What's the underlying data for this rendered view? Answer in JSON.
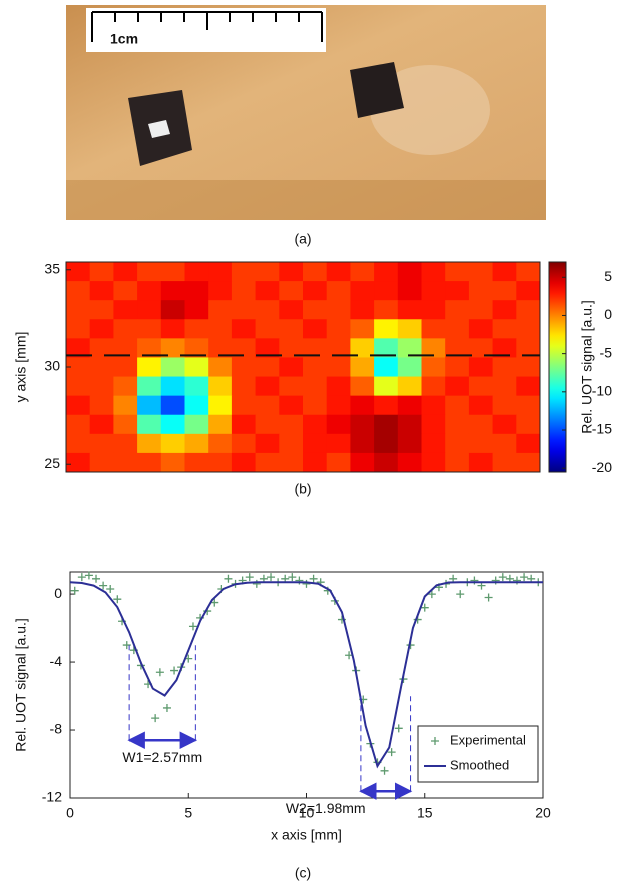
{
  "photo": {
    "scale_label": "1cm",
    "caption": "(a)"
  },
  "chart_data": [
    {
      "type": "heatmap",
      "caption": "(b)",
      "ylabel": "y axis [mm]",
      "colorbar_label": "Rel. UOT signal [a.u.]",
      "xlim": [
        0,
        20
      ],
      "ylim": [
        24.6,
        35.4
      ],
      "yticks": [
        25,
        30,
        35
      ],
      "clim": [
        -20.5,
        7
      ],
      "cticks": [
        5,
        0,
        -5,
        -10,
        -15,
        -20
      ],
      "colormap": "jet",
      "hline": 30.6,
      "values": [
        [
          3,
          2,
          3,
          2,
          2,
          3,
          3,
          2,
          2,
          3,
          2,
          3,
          2,
          3,
          4,
          3,
          2,
          2,
          3,
          2
        ],
        [
          2,
          3,
          2,
          3,
          4,
          4,
          3,
          2,
          3,
          2,
          3,
          2,
          3,
          3,
          4,
          3,
          3,
          2,
          2,
          3
        ],
        [
          2,
          2,
          3,
          3,
          5,
          4,
          2,
          2,
          2,
          3,
          2,
          2,
          3,
          2,
          3,
          3,
          2,
          2,
          3,
          2
        ],
        [
          2,
          3,
          2,
          2,
          3,
          2,
          2,
          3,
          2,
          2,
          3,
          2,
          1,
          -3,
          -2,
          2,
          2,
          3,
          2,
          2
        ],
        [
          3,
          2,
          2,
          1,
          0,
          1,
          2,
          2,
          3,
          2,
          2,
          2,
          -2,
          -8,
          -6,
          0,
          2,
          2,
          3,
          2
        ],
        [
          2,
          2,
          2,
          -3,
          -6,
          -4,
          0,
          2,
          2,
          3,
          2,
          2,
          -1,
          -10,
          -7,
          1,
          2,
          3,
          2,
          2
        ],
        [
          2,
          2,
          1,
          -8,
          -11,
          -9,
          -2,
          2,
          3,
          2,
          2,
          3,
          1,
          -4,
          -2,
          2,
          3,
          2,
          2,
          3
        ],
        [
          3,
          2,
          0,
          -12,
          -15,
          -10,
          -3,
          2,
          2,
          3,
          2,
          3,
          4,
          3,
          4,
          3,
          2,
          3,
          2,
          2
        ],
        [
          2,
          3,
          1,
          -8,
          -10,
          -7,
          -1,
          3,
          2,
          2,
          3,
          4,
          5,
          6,
          5,
          3,
          2,
          2,
          3,
          2
        ],
        [
          2,
          2,
          2,
          -1,
          -2,
          -1,
          1,
          2,
          3,
          2,
          3,
          3,
          5,
          6,
          5,
          3,
          2,
          2,
          2,
          3
        ],
        [
          3,
          2,
          2,
          2,
          1,
          2,
          2,
          3,
          2,
          2,
          3,
          2,
          4,
          5,
          4,
          3,
          2,
          3,
          2,
          2
        ]
      ]
    },
    {
      "type": "line",
      "caption": "(c)",
      "xlabel": "x axis [mm]",
      "ylabel": "Rel. UOT signal [a.u.]",
      "xlim": [
        0,
        20
      ],
      "ylim": [
        -12,
        1.3
      ],
      "xticks": [
        0,
        5,
        10,
        15,
        20
      ],
      "yticks": [
        0,
        -4,
        -8,
        -12
      ],
      "legend": "lower right",
      "series": [
        {
          "name": "Experimental",
          "color": "#5e9a6e",
          "marker": "+",
          "x": [
            0.2,
            0.5,
            0.8,
            1.1,
            1.4,
            1.7,
            2.0,
            2.2,
            2.4,
            2.7,
            3.0,
            3.3,
            3.6,
            3.8,
            4.1,
            4.4,
            4.7,
            5.0,
            5.2,
            5.5,
            5.8,
            6.1,
            6.4,
            6.7,
            7.0,
            7.3,
            7.6,
            7.9,
            8.2,
            8.5,
            8.8,
            9.1,
            9.4,
            9.7,
            10.0,
            10.3,
            10.6,
            10.9,
            11.2,
            11.5,
            11.8,
            12.1,
            12.4,
            12.7,
            13.0,
            13.3,
            13.6,
            13.9,
            14.1,
            14.4,
            14.7,
            15.0,
            15.3,
            15.6,
            15.9,
            16.2,
            16.5,
            16.8,
            17.1,
            17.4,
            17.7,
            18.0,
            18.3,
            18.6,
            18.9,
            19.2,
            19.5,
            19.8
          ],
          "values": [
            0.2,
            1.0,
            1.1,
            0.9,
            0.5,
            0.3,
            -0.3,
            -1.6,
            -3.0,
            -3.3,
            -4.2,
            -5.3,
            -7.3,
            -4.6,
            -6.7,
            -4.5,
            -4.3,
            -3.8,
            -1.9,
            -1.4,
            -1.0,
            -0.5,
            0.3,
            0.9,
            0.6,
            0.8,
            1.0,
            0.6,
            0.9,
            1.0,
            0.7,
            0.9,
            1.0,
            0.8,
            0.6,
            0.9,
            0.7,
            0.2,
            -0.4,
            -1.5,
            -3.6,
            -4.5,
            -6.2,
            -8.8,
            -9.9,
            -10.4,
            -9.3,
            -7.9,
            -5.0,
            -3.0,
            -1.5,
            -0.8,
            0.0,
            0.4,
            0.6,
            0.9,
            0.0,
            0.7,
            0.8,
            0.5,
            -0.2,
            0.8,
            1.0,
            0.9,
            0.8,
            1.0,
            0.9,
            0.7
          ]
        },
        {
          "name": "Smoothed",
          "color": "#2c2f96",
          "marker": "line",
          "x": [
            0,
            0.5,
            1,
            1.5,
            2,
            2.5,
            3,
            3.5,
            4,
            4.5,
            5,
            5.5,
            6,
            6.5,
            7,
            7.5,
            8,
            8.5,
            9,
            9.5,
            10,
            10.5,
            11,
            11.5,
            12,
            12.5,
            13,
            13.5,
            14,
            14.5,
            15,
            15.5,
            16,
            16.5,
            17,
            17.5,
            18,
            18.5,
            19,
            19.5,
            20
          ],
          "values": [
            0.7,
            0.65,
            0.5,
            0.1,
            -0.77,
            -2.25,
            -4.06,
            -5.56,
            -5.97,
            -5.06,
            -3.32,
            -1.58,
            -0.35,
            0.31,
            0.58,
            0.67,
            0.7,
            0.7,
            0.7,
            0.7,
            0.69,
            0.61,
            0.22,
            -1.07,
            -3.9,
            -7.75,
            -10.12,
            -9.02,
            -5.45,
            -2.0,
            -0.14,
            0.52,
            0.68,
            0.7,
            0.7,
            0.7,
            0.7,
            0.7,
            0.7,
            0.7,
            0.7
          ]
        }
      ],
      "annotations": [
        {
          "text": "W1=2.57mm",
          "x": [
            2.5,
            5.3
          ],
          "y": -8.6,
          "color": "#3636c8"
        },
        {
          "text": "W2=1.98mm",
          "x": [
            12.3,
            14.4
          ],
          "y": -11.6,
          "color": "#3636c8"
        }
      ]
    }
  ]
}
